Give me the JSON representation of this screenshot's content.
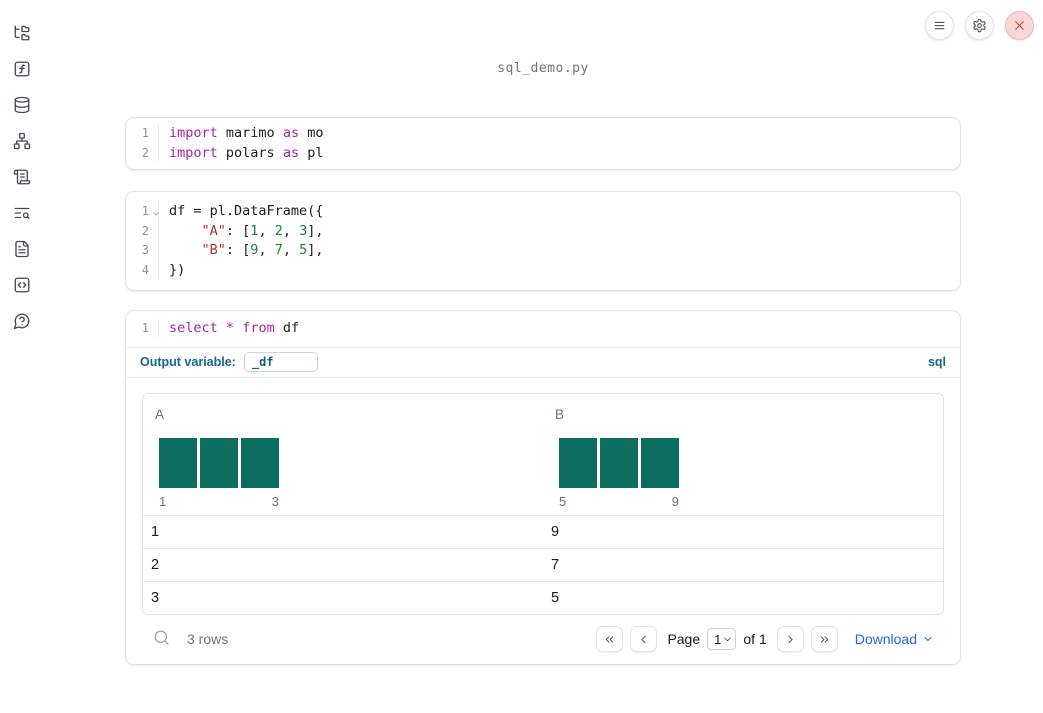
{
  "window": {
    "title": "sql_demo.py"
  },
  "topbar": {
    "buttons": [
      {
        "name": "menu",
        "icon": "hamburger-icon"
      },
      {
        "name": "settings",
        "icon": "gear-icon"
      },
      {
        "name": "shutdown",
        "icon": "close-icon"
      }
    ]
  },
  "sidebar": {
    "icons": [
      "file-tree",
      "function-square",
      "database",
      "dependency-graph",
      "scroll-logs",
      "text-search",
      "document",
      "code-snippets",
      "help-bubble"
    ]
  },
  "cells": [
    {
      "type": "python",
      "lines": [
        {
          "num": "1",
          "tokens": [
            {
              "t": "import",
              "c": "kw"
            },
            {
              "t": " marimo ",
              "c": "pl"
            },
            {
              "t": "as",
              "c": "kw"
            },
            {
              "t": " mo",
              "c": "pl"
            }
          ]
        },
        {
          "num": "2",
          "tokens": [
            {
              "t": "import",
              "c": "kw"
            },
            {
              "t": " polars ",
              "c": "pl"
            },
            {
              "t": "as",
              "c": "kw"
            },
            {
              "t": " pl",
              "c": "pl"
            }
          ]
        }
      ]
    },
    {
      "type": "python",
      "lines": [
        {
          "num": "1",
          "fold": true,
          "tokens": [
            {
              "t": "df = pl.DataFrame({",
              "c": "pl"
            }
          ]
        },
        {
          "num": "2",
          "tokens": [
            {
              "t": "    ",
              "c": "pl"
            },
            {
              "t": "\"A\"",
              "c": "str"
            },
            {
              "t": ": [",
              "c": "pl"
            },
            {
              "t": "1",
              "c": "num"
            },
            {
              "t": ", ",
              "c": "pl"
            },
            {
              "t": "2",
              "c": "num"
            },
            {
              "t": ", ",
              "c": "pl"
            },
            {
              "t": "3",
              "c": "num"
            },
            {
              "t": "],",
              "c": "pl"
            }
          ]
        },
        {
          "num": "3",
          "tokens": [
            {
              "t": "    ",
              "c": "pl"
            },
            {
              "t": "\"B\"",
              "c": "str"
            },
            {
              "t": ": [",
              "c": "pl"
            },
            {
              "t": "9",
              "c": "num"
            },
            {
              "t": ", ",
              "c": "pl"
            },
            {
              "t": "7",
              "c": "num"
            },
            {
              "t": ", ",
              "c": "pl"
            },
            {
              "t": "5",
              "c": "num"
            },
            {
              "t": "],",
              "c": "pl"
            }
          ]
        },
        {
          "num": "4",
          "tokens": [
            {
              "t": "})",
              "c": "pl"
            }
          ]
        }
      ]
    },
    {
      "type": "sql",
      "lines": [
        {
          "num": "1",
          "tokens": [
            {
              "t": "select",
              "c": "kw"
            },
            {
              "t": " ",
              "c": "pl"
            },
            {
              "t": "*",
              "c": "kw"
            },
            {
              "t": " ",
              "c": "pl"
            },
            {
              "t": "from",
              "c": "kw"
            },
            {
              "t": " df",
              "c": "pl"
            }
          ]
        }
      ],
      "footer": {
        "output_variable_label": "Output variable:",
        "output_variable_value": "_df",
        "language_badge": "sql"
      }
    }
  ],
  "output": {
    "table": {
      "columns": [
        {
          "header": "A",
          "bar_values": [
            1,
            1,
            1
          ],
          "tick_min": "1",
          "tick_max": "3"
        },
        {
          "header": "B",
          "bar_values": [
            1,
            1,
            1
          ],
          "tick_min": "5",
          "tick_max": "9"
        }
      ],
      "rows": [
        [
          "1",
          "9"
        ],
        [
          "2",
          "7"
        ],
        [
          "3",
          "5"
        ]
      ],
      "bar_color": "#0d6e5f"
    },
    "toolbar": {
      "row_count": "3 rows",
      "page_label": "Page",
      "page_value": "1",
      "page_total_label": "of 1",
      "download_label": "Download"
    }
  },
  "colors": {
    "keyword": "#a626a4",
    "string": "#b12f2f",
    "number": "#1a7f37",
    "sql_accent": "#166890",
    "link_blue": "#2563eb",
    "bar_green": "#0d6e5f",
    "close_red": "#d64545"
  }
}
